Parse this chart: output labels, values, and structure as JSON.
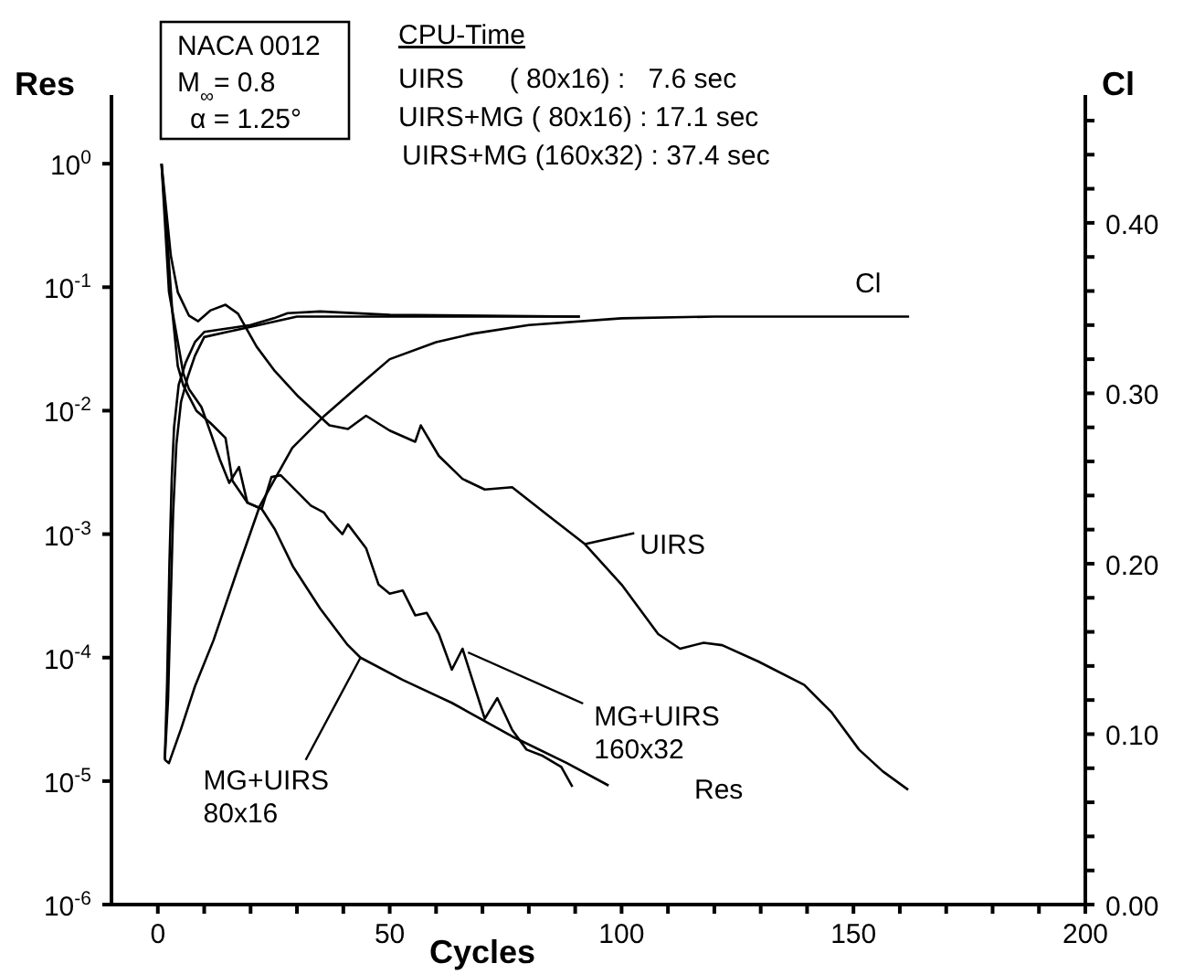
{
  "chart_data": {
    "type": "line",
    "xlabel": "Cycles",
    "ylabel": "Res",
    "y2label": "Cl",
    "log": "y",
    "xlim": [
      -10,
      200
    ],
    "xticks": [
      0,
      {
        "value": 10,
        "label": null
      },
      {
        "value": 20,
        "label": null
      },
      {
        "value": 30,
        "label": null
      },
      {
        "value": 40,
        "label": null
      },
      50,
      {
        "value": 60,
        "label": null
      },
      {
        "value": 70,
        "label": null
      },
      {
        "value": 80,
        "label": null
      },
      {
        "value": 90,
        "label": null
      },
      100,
      {
        "value": 110,
        "label": null
      },
      {
        "value": 120,
        "label": null
      },
      {
        "value": 130,
        "label": null
      },
      {
        "value": 140,
        "label": null
      },
      150,
      {
        "value": 160,
        "label": null
      },
      {
        "value": 170,
        "label": null
      },
      {
        "value": 180,
        "label": null
      },
      {
        "value": 190,
        "label": null
      },
      200
    ],
    "ylim": [
      1e-06,
      3.6
    ],
    "yticks": [
      {
        "value": 1e-06,
        "label": "10$^{-6}$"
      },
      {
        "value": 1e-05,
        "label": "10$^{-5}$"
      },
      {
        "value": 0.0001,
        "label": "10$^{-4}$"
      },
      {
        "value": 0.001,
        "label": "10$^{-3}$"
      },
      {
        "value": 0.01,
        "label": "10$^{-2}$"
      },
      {
        "value": 0.1,
        "label": "10$^{-1}$"
      },
      {
        "value": 1,
        "label": "10$^{0}$"
      }
    ],
    "y2lim": [
      0,
      0.475
    ],
    "y2ticks": [
      {
        "value": 0,
        "label": "0.00"
      },
      {
        "value": 0.02,
        "label": null
      },
      {
        "value": 0.04,
        "label": null
      },
      {
        "value": 0.06,
        "label": null
      },
      {
        "value": 0.08,
        "label": null
      },
      {
        "value": 0.1,
        "label": "0.10"
      },
      {
        "value": 0.12,
        "label": null
      },
      {
        "value": 0.14,
        "label": null
      },
      {
        "value": 0.16,
        "label": null
      },
      {
        "value": 0.18,
        "label": null
      },
      {
        "value": 0.2,
        "label": "0.20"
      },
      {
        "value": 0.22,
        "label": null
      },
      {
        "value": 0.24,
        "label": null
      },
      {
        "value": 0.26,
        "label": null
      },
      {
        "value": 0.28,
        "label": null
      },
      {
        "value": 0.3,
        "label": "0.30"
      },
      {
        "value": 0.32,
        "label": null
      },
      {
        "value": 0.34,
        "label": null
      },
      {
        "value": 0.36,
        "label": null
      },
      {
        "value": 0.38,
        "label": null
      },
      {
        "value": 0.4,
        "label": "0.40"
      },
      {
        "value": 0.42,
        "label": null
      },
      {
        "value": 0.44,
        "label": null
      },
      {
        "value": 0.46,
        "label": null
      }
    ],
    "grid": false,
    "legend": false,
    "series": [
      {
        "color": "#000000",
        "x": [
          0.8,
          2.8,
          4.3,
          6.7,
          8.7,
          11.4,
          14.6,
          17.3,
          21.3,
          25.2,
          30.3,
          37,
          41,
          44.9,
          50,
          55.5,
          56.7,
          60.6,
          65.7,
          70.5,
          76.4,
          84.3,
          92.1,
          100,
          107.9,
          112.6,
          117.7,
          121.7,
          129.5,
          139.4,
          145.3,
          151.2,
          156.3,
          161.8
        ],
        "values": [
          1,
          0.18,
          0.091,
          0.059,
          0.053,
          0.065,
          0.072,
          0.061,
          0.033,
          0.021,
          0.013,
          0.0076,
          0.0071,
          0.0091,
          0.0069,
          0.0056,
          0.0076,
          0.0043,
          0.0028,
          0.0023,
          0.0024,
          0.0014,
          0.00083,
          0.00039,
          0.000155,
          0.000118,
          0.000132,
          0.000126,
          9.3e-05,
          6e-05,
          3.6e-05,
          1.8e-05,
          1.2e-05,
          8.5e-06
        ]
      },
      {
        "color": "#000000",
        "x": [
          0.8,
          2,
          3.1,
          4.3,
          5.5,
          8.3,
          11.4,
          14.6,
          16.1,
          19.3,
          22.4,
          25.2,
          29.1,
          35,
          40.9,
          43.7,
          52.8,
          63.4,
          76.4,
          88.2,
          97.2
        ],
        "values": [
          1,
          0.26,
          0.065,
          0.023,
          0.016,
          0.01,
          0.0079,
          0.006,
          0.0027,
          0.0018,
          0.0016,
          0.0011,
          0.00055,
          0.00025,
          0.000127,
          0.0001,
          6.6e-05,
          4.3e-05,
          2.3e-05,
          1.4e-05,
          9.2e-06
        ]
      },
      {
        "color": "#000000",
        "x": [
          0.8,
          2.4,
          5.5,
          6.7,
          9.4,
          11.4,
          13.4,
          15.4,
          17.5,
          19.3,
          22.4,
          24.5,
          26.5,
          33,
          35.8,
          37,
          39.8,
          41,
          44.9,
          47.6,
          50,
          52.8,
          55.5,
          58,
          60.6,
          63.4,
          65.7,
          70.5,
          73.2,
          76.4,
          79.5,
          83,
          87,
          89.4
        ],
        "values": [
          1,
          0.092,
          0.02,
          0.015,
          0.0107,
          0.0066,
          0.004,
          0.0026,
          0.0035,
          0.0018,
          0.0016,
          0.0029,
          0.003,
          0.0017,
          0.0015,
          0.0013,
          0.001,
          0.0012,
          0.00077,
          0.00039,
          0.00033,
          0.00035,
          0.00022,
          0.00023,
          0.000155,
          8e-05,
          0.000118,
          3.2e-05,
          4.7e-05,
          2.6e-05,
          1.8e-05,
          1.6e-05,
          1.3e-05,
          9e-06
        ]
      },
      {
        "axis": "y2",
        "color": "#000000",
        "x": [
          1.5,
          2.4,
          5,
          8,
          12,
          17,
          22,
          29,
          36,
          44,
          50,
          60,
          68,
          80,
          100,
          120,
          162
        ],
        "values": [
          0.085,
          0.083,
          0.103,
          0.128,
          0.155,
          0.195,
          0.234,
          0.268,
          0.287,
          0.306,
          0.32,
          0.33,
          0.335,
          0.34,
          0.344,
          0.345,
          0.345
        ]
      },
      {
        "axis": "y2",
        "color": "#000000",
        "x": [
          1.5,
          2,
          2.5,
          3,
          3.5,
          4.5,
          6,
          8,
          10,
          15,
          20,
          25,
          28,
          35,
          50,
          91
        ],
        "values": [
          0.085,
          0.13,
          0.2,
          0.25,
          0.28,
          0.305,
          0.318,
          0.33,
          0.336,
          0.338,
          0.34,
          0.344,
          0.347,
          0.348,
          0.346,
          0.345
        ]
      },
      {
        "axis": "y2",
        "color": "#000000",
        "x": [
          1.5,
          2.2,
          2.8,
          3.3,
          4,
          5,
          6.5,
          8,
          10,
          15,
          20,
          30,
          91
        ],
        "values": [
          0.085,
          0.12,
          0.18,
          0.23,
          0.27,
          0.295,
          0.31,
          0.322,
          0.333,
          0.336,
          0.339,
          0.345,
          0.345
        ]
      }
    ],
    "annotations": [
      "NACA 0012",
      "M$_{∞}$= 0.8",
      "α = 1.25°",
      "CPU-Time",
      "UIRS      ( 80x16) :   7.6 sec",
      "UIRS+MG ( 80x16) : 17.1 sec",
      "UIRS+MG (160x32) : 37.4 sec",
      "Cl",
      "Res",
      {
        "text": "UIRS",
        "x": 92.1,
        "y": 0.00083
      },
      {
        "text": "MG+UIRS\n80x16",
        "x": 43.7,
        "y": 0.0001
      },
      {
        "text": "MG+UIRS\n160x32",
        "x": 65.7,
        "y": 0.000118
      }
    ]
  }
}
